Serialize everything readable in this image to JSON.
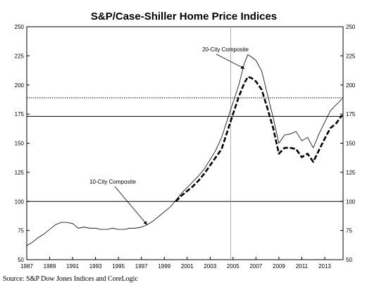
{
  "chart_data": {
    "type": "line",
    "title": "S&P/Case-Shiller Home Price Indices",
    "source": "Source: S&P Dow Jones Indices and CoreLogic",
    "xlim": [
      1987,
      2014.6
    ],
    "ylim": [
      50,
      250
    ],
    "x_ticks": [
      "1987",
      "1989",
      "1991",
      "1993",
      "1995",
      "1997",
      "1999",
      "2001",
      "2003",
      "2005",
      "2007",
      "2009",
      "2011",
      "2013"
    ],
    "y_ticks": [
      "50",
      "75",
      "100",
      "125",
      "150",
      "175",
      "200",
      "225",
      "250"
    ],
    "reference_lines": [
      {
        "y": 100,
        "style": "solid"
      },
      {
        "y": 173,
        "style": "solid"
      },
      {
        "y": 189,
        "style": "dotted"
      }
    ],
    "vertical_marker": {
      "x": 2004.8
    },
    "series": [
      {
        "name": "10-City Composite",
        "style": "thin-solid",
        "points": [
          [
            1987.0,
            62
          ],
          [
            1987.5,
            65
          ],
          [
            1988.0,
            69
          ],
          [
            1988.5,
            72
          ],
          [
            1989.0,
            76
          ],
          [
            1989.5,
            80
          ],
          [
            1990.0,
            82
          ],
          [
            1990.5,
            82
          ],
          [
            1991.0,
            81
          ],
          [
            1991.5,
            77
          ],
          [
            1992.0,
            78
          ],
          [
            1992.5,
            77
          ],
          [
            1993.0,
            77
          ],
          [
            1993.5,
            76
          ],
          [
            1994.0,
            76
          ],
          [
            1994.5,
            77
          ],
          [
            1995.0,
            76
          ],
          [
            1995.5,
            76
          ],
          [
            1996.0,
            77
          ],
          [
            1996.5,
            77
          ],
          [
            1997.0,
            78
          ],
          [
            1997.5,
            80
          ],
          [
            1998.0,
            83
          ],
          [
            1998.5,
            87
          ],
          [
            1999.0,
            91
          ],
          [
            1999.5,
            95
          ],
          [
            2000.0,
            101
          ],
          [
            2000.5,
            107
          ],
          [
            2001.0,
            112
          ],
          [
            2001.5,
            117
          ],
          [
            2002.0,
            122
          ],
          [
            2002.5,
            128
          ],
          [
            2003.0,
            136
          ],
          [
            2003.5,
            144
          ],
          [
            2004.0,
            155
          ],
          [
            2004.5,
            170
          ],
          [
            2005.0,
            185
          ],
          [
            2005.5,
            200
          ],
          [
            2006.0,
            219
          ],
          [
            2006.3,
            226
          ],
          [
            2006.6,
            224
          ],
          [
            2007.0,
            221
          ],
          [
            2007.5,
            212
          ],
          [
            2008.0,
            192
          ],
          [
            2008.5,
            172
          ],
          [
            2009.0,
            150
          ],
          [
            2009.5,
            157
          ],
          [
            2010.0,
            158
          ],
          [
            2010.5,
            160
          ],
          [
            2011.0,
            152
          ],
          [
            2011.5,
            155
          ],
          [
            2012.0,
            146
          ],
          [
            2012.5,
            158
          ],
          [
            2013.0,
            168
          ],
          [
            2013.5,
            178
          ],
          [
            2014.0,
            183
          ],
          [
            2014.5,
            188
          ]
        ]
      },
      {
        "name": "20-City Composite",
        "style": "thick-dashed",
        "points": [
          [
            2000.0,
            100
          ],
          [
            2000.5,
            105
          ],
          [
            2001.0,
            109
          ],
          [
            2001.5,
            113
          ],
          [
            2002.0,
            118
          ],
          [
            2002.5,
            124
          ],
          [
            2003.0,
            131
          ],
          [
            2003.5,
            138
          ],
          [
            2004.0,
            145
          ],
          [
            2004.5,
            160
          ],
          [
            2005.0,
            175
          ],
          [
            2005.5,
            190
          ],
          [
            2006.0,
            202
          ],
          [
            2006.3,
            207
          ],
          [
            2006.6,
            206
          ],
          [
            2007.0,
            203
          ],
          [
            2007.5,
            196
          ],
          [
            2008.0,
            180
          ],
          [
            2008.5,
            163
          ],
          [
            2009.0,
            141
          ],
          [
            2009.5,
            146
          ],
          [
            2010.0,
            146
          ],
          [
            2010.5,
            145
          ],
          [
            2011.0,
            138
          ],
          [
            2011.5,
            141
          ],
          [
            2012.0,
            134
          ],
          [
            2012.5,
            144
          ],
          [
            2013.0,
            154
          ],
          [
            2013.5,
            163
          ],
          [
            2014.0,
            167
          ],
          [
            2014.5,
            174
          ]
        ]
      }
    ],
    "annotations": [
      {
        "text": "20-City Composite",
        "series": "20-City Composite",
        "arrow_to": [
          2006.0,
          214
        ]
      },
      {
        "text": "10-City Composite",
        "series": "10-City Composite",
        "arrow_to": [
          1997.5,
          80
        ]
      }
    ]
  }
}
